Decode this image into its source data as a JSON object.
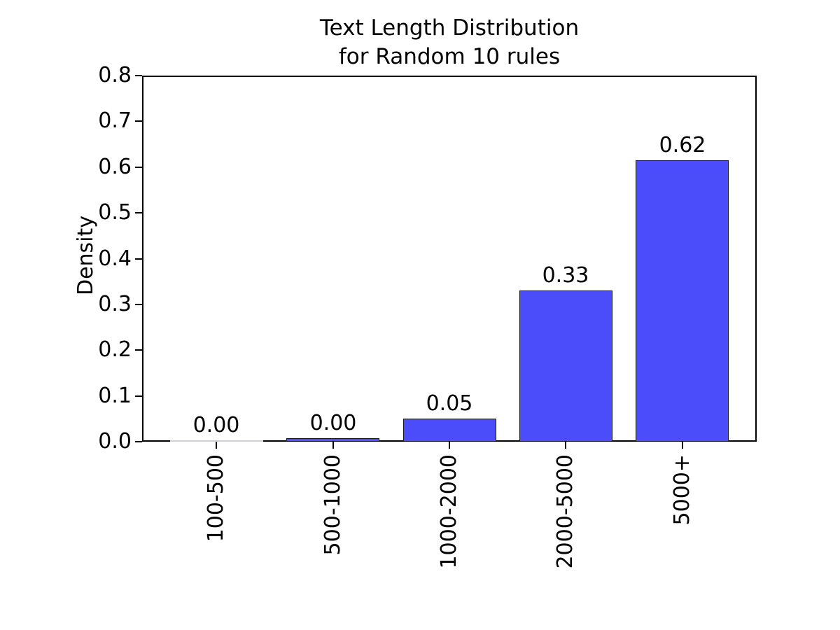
{
  "chart_data": {
    "type": "bar",
    "title_lines": [
      "Text Length Distribution",
      "for Random 10 rules"
    ],
    "ylabel": "Density",
    "xlabel": "",
    "categories": [
      "100-500",
      "500-1000",
      "1000-2000",
      "2000-5000",
      "5000+"
    ],
    "values": [
      0.0,
      0.005,
      0.05,
      0.33,
      0.615
    ],
    "bar_value_labels": [
      "0.00",
      "0.00",
      "0.05",
      "0.33",
      "0.62"
    ],
    "ylim": [
      0.0,
      0.8
    ],
    "ytick_labels": [
      "0.0",
      "0.1",
      "0.2",
      "0.3",
      "0.4",
      "0.5",
      "0.6",
      "0.7",
      "0.8"
    ],
    "grid": false,
    "legend": "none",
    "x_tick_rotation_deg": 90,
    "bar_color": "#4b4dfa",
    "bar_edge_color": "#15151f",
    "zero_bar_color": "#d0d0da",
    "text_color": "#000000",
    "background_color": "#ffffff"
  }
}
